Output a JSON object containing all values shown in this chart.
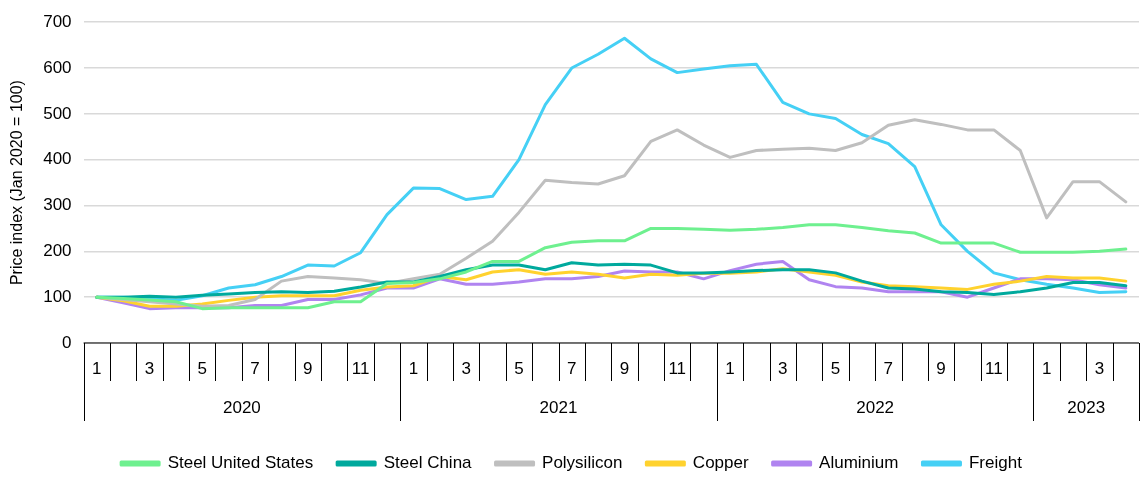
{
  "chart_data": {
    "type": "line",
    "ylabel": "Price index (Jan 2020 = 100)",
    "categories": [
      "1",
      null,
      "3",
      null,
      "5",
      null,
      "7",
      null,
      "9",
      null,
      "11",
      null,
      "1",
      null,
      "3",
      null,
      "5",
      null,
      "7",
      null,
      "9",
      null,
      "11",
      null,
      "1",
      null,
      "3",
      null,
      "5",
      null,
      "7",
      null,
      "9",
      null,
      "11",
      null,
      "1",
      null,
      "3",
      null
    ],
    "annotations": [
      "2020",
      "2021",
      "2022",
      "2023"
    ],
    "ylim": [
      0,
      700
    ],
    "yticks": [
      0,
      100,
      200,
      300,
      400,
      500,
      600,
      700
    ],
    "grid": "y",
    "legend": "bottom",
    "marker": "none",
    "line_style": "solid",
    "series": [
      {
        "name": "Steel United States",
        "color": "#6ef08f",
        "values": [
          100,
          97,
          94,
          90,
          75,
          77,
          77,
          77,
          77,
          90,
          90,
          130,
          132,
          140,
          155,
          178,
          178,
          208,
          220,
          223,
          223,
          250,
          250,
          248,
          246,
          248,
          252,
          258,
          258,
          252,
          245,
          240,
          218,
          218,
          218,
          198,
          198,
          198,
          200,
          205
        ]
      },
      {
        "name": "Steel China",
        "color": "#00a99d",
        "values": [
          100,
          100,
          102,
          100,
          104,
          107,
          110,
          112,
          110,
          113,
          122,
          133,
          133,
          145,
          160,
          170,
          170,
          160,
          175,
          170,
          172,
          170,
          153,
          153,
          155,
          158,
          160,
          160,
          153,
          135,
          120,
          118,
          112,
          110,
          106,
          112,
          120,
          132,
          132,
          125
        ]
      },
      {
        "name": "Polysilicon",
        "color": "#bfbfbf",
        "values": [
          100,
          95,
          90,
          85,
          80,
          82,
          95,
          135,
          145,
          142,
          138,
          130,
          140,
          150,
          185,
          222,
          285,
          355,
          350,
          347,
          365,
          440,
          465,
          432,
          405,
          420,
          423,
          425,
          420,
          437,
          475,
          487,
          477,
          465,
          465,
          420,
          273,
          352,
          352,
          308
        ]
      },
      {
        "name": "Copper",
        "color": "#ffd22e",
        "values": [
          100,
          92,
          80,
          80,
          85,
          93,
          100,
          103,
          103,
          103,
          115,
          122,
          125,
          145,
          138,
          155,
          160,
          150,
          155,
          150,
          142,
          150,
          148,
          152,
          152,
          155,
          162,
          155,
          148,
          133,
          125,
          123,
          120,
          117,
          128,
          135,
          145,
          142,
          142,
          135
        ]
      },
      {
        "name": "Aluminium",
        "color": "#b084f0",
        "values": [
          100,
          88,
          75,
          77,
          77,
          77,
          82,
          82,
          95,
          95,
          105,
          120,
          120,
          140,
          128,
          128,
          133,
          140,
          140,
          145,
          157,
          155,
          155,
          140,
          158,
          172,
          178,
          138,
          123,
          120,
          112,
          112,
          112,
          100,
          120,
          140,
          140,
          138,
          127,
          120
        ]
      },
      {
        "name": "Freight",
        "color": "#45d0f5",
        "values": [
          100,
          100,
          97,
          93,
          103,
          120,
          127,
          145,
          170,
          168,
          197,
          280,
          338,
          337,
          313,
          320,
          400,
          520,
          600,
          630,
          665,
          620,
          590,
          598,
          605,
          608,
          525,
          500,
          490,
          455,
          435,
          385,
          258,
          200,
          153,
          138,
          128,
          120,
          110,
          112
        ]
      }
    ]
  }
}
